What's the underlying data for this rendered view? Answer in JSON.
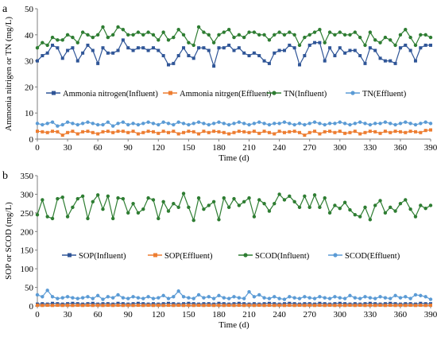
{
  "chart_data": [
    {
      "type": "line",
      "panel_label": "a",
      "xlabel": "Time (d)",
      "ylabel": "Ammonia nitrigen or TN (mg/L)",
      "xlim": [
        0,
        390
      ],
      "ylim": [
        0,
        50
      ],
      "x_ticks": [
        0,
        30,
        60,
        90,
        120,
        150,
        180,
        210,
        240,
        270,
        300,
        330,
        360,
        390
      ],
      "y_ticks": [
        0,
        10,
        20,
        30,
        40,
        50
      ],
      "grid": false,
      "legend_position": "middle",
      "x": [
        0,
        5,
        10,
        15,
        20,
        25,
        30,
        35,
        40,
        45,
        50,
        55,
        60,
        65,
        70,
        75,
        80,
        85,
        90,
        95,
        100,
        105,
        110,
        115,
        120,
        125,
        130,
        135,
        140,
        145,
        150,
        155,
        160,
        165,
        170,
        175,
        180,
        185,
        190,
        195,
        200,
        205,
        210,
        215,
        220,
        225,
        230,
        235,
        240,
        245,
        250,
        255,
        260,
        265,
        270,
        275,
        280,
        285,
        290,
        295,
        300,
        305,
        310,
        315,
        320,
        325,
        330,
        335,
        340,
        345,
        350,
        355,
        360,
        365,
        370,
        375,
        380,
        385,
        390
      ],
      "series": [
        {
          "name": "Ammonia nitrogen(Influent)",
          "color": "#2f5597",
          "marker": "square",
          "values": [
            30,
            32,
            33,
            36,
            35,
            31,
            34,
            35,
            30,
            33,
            36,
            34,
            29,
            35,
            33,
            33,
            34,
            38,
            35,
            34,
            35,
            35,
            34,
            35,
            34,
            32,
            28.5,
            29,
            32,
            35,
            32,
            31,
            35,
            35,
            34,
            28,
            35,
            35,
            36,
            34,
            35,
            33,
            32,
            33,
            32,
            30,
            29,
            33,
            34,
            34,
            36,
            35,
            28.5,
            32,
            36,
            37,
            37,
            30,
            35,
            32,
            35,
            33,
            34,
            34,
            32,
            29,
            35,
            34,
            31,
            30,
            30,
            29,
            35,
            36,
            34,
            30,
            35,
            36,
            36
          ]
        },
        {
          "name": "Ammonia nitrgen(Effluent)",
          "color": "#ed7d31",
          "marker": "square",
          "values": [
            3,
            2.8,
            2.5,
            3,
            2.8,
            1.5,
            2.5,
            3,
            2,
            2.8,
            3,
            2.5,
            2,
            2.8,
            3,
            2.5,
            3,
            3,
            2.5,
            3,
            2,
            2.5,
            3,
            2.8,
            2.2,
            3,
            2.5,
            3,
            2,
            2.5,
            3,
            2.8,
            2,
            3,
            2.5,
            3,
            2.8,
            2.5,
            2,
            2.5,
            3,
            2.8,
            2.5,
            3,
            2.2,
            3,
            2.5,
            2,
            3,
            2.5,
            2.8,
            3,
            2.5,
            1.5,
            2.5,
            3,
            2,
            2.8,
            3,
            2.5,
            3,
            2.2,
            2.5,
            3,
            2,
            2.5,
            3,
            2.8,
            2.2,
            3,
            2.5,
            3,
            2.8,
            2.5,
            3,
            2.8,
            2.5,
            3.3,
            3.5
          ]
        },
        {
          "name": "TN(Influent)",
          "color": "#2e7d32",
          "marker": "circle",
          "values": [
            35,
            37,
            36,
            39,
            38,
            38,
            40,
            39,
            37,
            41,
            40,
            39,
            40,
            43,
            39,
            40,
            43,
            42,
            40,
            40,
            41,
            40,
            41,
            40,
            38,
            41,
            38,
            39,
            42,
            40,
            37,
            36,
            43,
            41,
            40,
            37,
            40,
            41,
            42,
            39,
            40,
            39,
            41,
            41,
            40,
            40,
            38,
            40,
            41,
            40,
            41,
            40,
            36,
            39,
            40,
            41,
            42,
            37,
            41,
            40,
            41,
            40,
            40,
            41,
            39,
            36,
            41,
            38,
            37,
            39,
            38,
            36,
            40,
            42,
            39,
            36,
            40,
            40,
            39
          ]
        },
        {
          "name": "TN(Effluent)",
          "color": "#5b9bd5",
          "marker": "circle",
          "values": [
            6,
            5.5,
            6,
            6.5,
            5,
            5.5,
            6.5,
            6,
            5.5,
            6,
            6.5,
            6,
            5.5,
            5.5,
            6.5,
            5,
            6,
            6.5,
            5.5,
            6,
            5.5,
            6,
            6.5,
            6,
            5.5,
            6.5,
            6,
            5.5,
            6.5,
            6,
            5.5,
            6,
            6.5,
            6,
            5.5,
            6,
            6.5,
            6,
            5.5,
            6,
            6.5,
            6,
            5.5,
            6,
            6.5,
            6,
            5.5,
            6,
            6,
            6.5,
            6,
            5.5,
            6,
            5.5,
            6,
            6.5,
            6,
            5.5,
            6,
            6,
            6.5,
            6,
            5.5,
            6,
            6.5,
            6,
            5.5,
            6,
            6,
            6.5,
            6,
            5.5,
            6,
            6.5,
            6,
            5.5,
            6,
            6.5,
            6
          ]
        }
      ]
    },
    {
      "type": "line",
      "panel_label": "b",
      "xlabel": "Time (d)",
      "ylabel": "SOP or SCOD (mg/L)",
      "xlim": [
        0,
        390
      ],
      "ylim": [
        0,
        350
      ],
      "x_ticks": [
        0,
        30,
        60,
        90,
        120,
        150,
        180,
        210,
        240,
        270,
        300,
        330,
        360,
        390
      ],
      "y_ticks": [
        0,
        50,
        100,
        150,
        200,
        250,
        300,
        350
      ],
      "grid": false,
      "legend_position": "middle",
      "x": [
        0,
        5,
        10,
        15,
        20,
        25,
        30,
        35,
        40,
        45,
        50,
        55,
        60,
        65,
        70,
        75,
        80,
        85,
        90,
        95,
        100,
        105,
        110,
        115,
        120,
        125,
        130,
        135,
        140,
        145,
        150,
        155,
        160,
        165,
        170,
        175,
        180,
        185,
        190,
        195,
        200,
        205,
        210,
        215,
        220,
        225,
        230,
        235,
        240,
        245,
        250,
        255,
        260,
        265,
        270,
        275,
        280,
        285,
        290,
        295,
        300,
        305,
        310,
        315,
        320,
        325,
        330,
        335,
        340,
        345,
        350,
        355,
        360,
        365,
        370,
        375,
        380,
        385,
        390
      ],
      "series": [
        {
          "name": "SOP(Influent)",
          "color": "#2f5597",
          "marker": "square",
          "values": [
            5,
            6,
            5,
            7,
            6,
            5,
            6,
            7,
            6,
            5,
            6,
            7,
            5,
            6,
            6,
            5,
            7,
            6,
            5,
            6,
            7,
            6,
            5,
            6,
            5,
            6,
            7,
            6,
            5,
            6,
            7,
            6,
            5,
            6,
            6,
            5,
            7,
            6,
            5,
            6,
            7,
            6,
            5,
            6,
            5,
            6,
            7,
            6,
            5,
            6,
            7,
            6,
            5,
            6,
            6,
            5,
            7,
            6,
            5,
            6,
            7,
            6,
            5,
            6,
            5,
            6,
            7,
            6,
            5,
            6,
            7,
            6,
            5,
            6,
            6,
            5,
            7,
            6,
            6
          ]
        },
        {
          "name": "SOP(Effluent)",
          "color": "#ed7d31",
          "marker": "square",
          "values": [
            2,
            1.5,
            2,
            1.5,
            2,
            1.5,
            2,
            1.5,
            2,
            1.5,
            2,
            1.5,
            2,
            1.5,
            2,
            1.5,
            2,
            1.5,
            2,
            1.5,
            2,
            1.5,
            2,
            1.5,
            2,
            1.5,
            2,
            1.5,
            2,
            1.5,
            2,
            1.5,
            2,
            1.5,
            2,
            1.5,
            2,
            1.5,
            2,
            1.5,
            2,
            1.5,
            2,
            1.5,
            2,
            1.5,
            2,
            1.5,
            2,
            1.5,
            2,
            1.5,
            2,
            1.5,
            2,
            1.5,
            2,
            1.5,
            2,
            1.5,
            2,
            1.5,
            2,
            1.5,
            2,
            1.5,
            2,
            1.5,
            2,
            1.5,
            2,
            1.5,
            2,
            1.5,
            2,
            1.5,
            2,
            1.5,
            2
          ]
        },
        {
          "name": "SCOD(Influent)",
          "color": "#2e7d32",
          "marker": "circle",
          "values": [
            245,
            285,
            240,
            235,
            288,
            292,
            240,
            265,
            288,
            295,
            235,
            280,
            298,
            260,
            295,
            235,
            290,
            288,
            250,
            275,
            250,
            260,
            290,
            285,
            235,
            280,
            255,
            275,
            265,
            302,
            265,
            230,
            290,
            260,
            270,
            280,
            232,
            290,
            265,
            288,
            270,
            280,
            290,
            240,
            285,
            275,
            255,
            275,
            300,
            285,
            295,
            280,
            265,
            295,
            265,
            298,
            265,
            290,
            250,
            270,
            262,
            278,
            258,
            245,
            240,
            265,
            232,
            270,
            283,
            250,
            265,
            255,
            275,
            285,
            260,
            240,
            270,
            262,
            270
          ]
        },
        {
          "name": "SCOD(Effluent)",
          "color": "#5b9bd5",
          "marker": "circle",
          "values": [
            30,
            25,
            42,
            25,
            20,
            22,
            25,
            22,
            20,
            22,
            25,
            20,
            28,
            18,
            25,
            22,
            30,
            22,
            20,
            25,
            22,
            20,
            25,
            20,
            22,
            28,
            20,
            25,
            40,
            25,
            22,
            20,
            30,
            22,
            25,
            20,
            28,
            22,
            20,
            25,
            22,
            20,
            38,
            25,
            30,
            22,
            20,
            25,
            20,
            18,
            25,
            22,
            20,
            25,
            22,
            20,
            25,
            22,
            20,
            25,
            22,
            20,
            28,
            22,
            20,
            25,
            22,
            20,
            25,
            22,
            20,
            28,
            22,
            25,
            20,
            30,
            28,
            25,
            18
          ]
        }
      ]
    }
  ]
}
